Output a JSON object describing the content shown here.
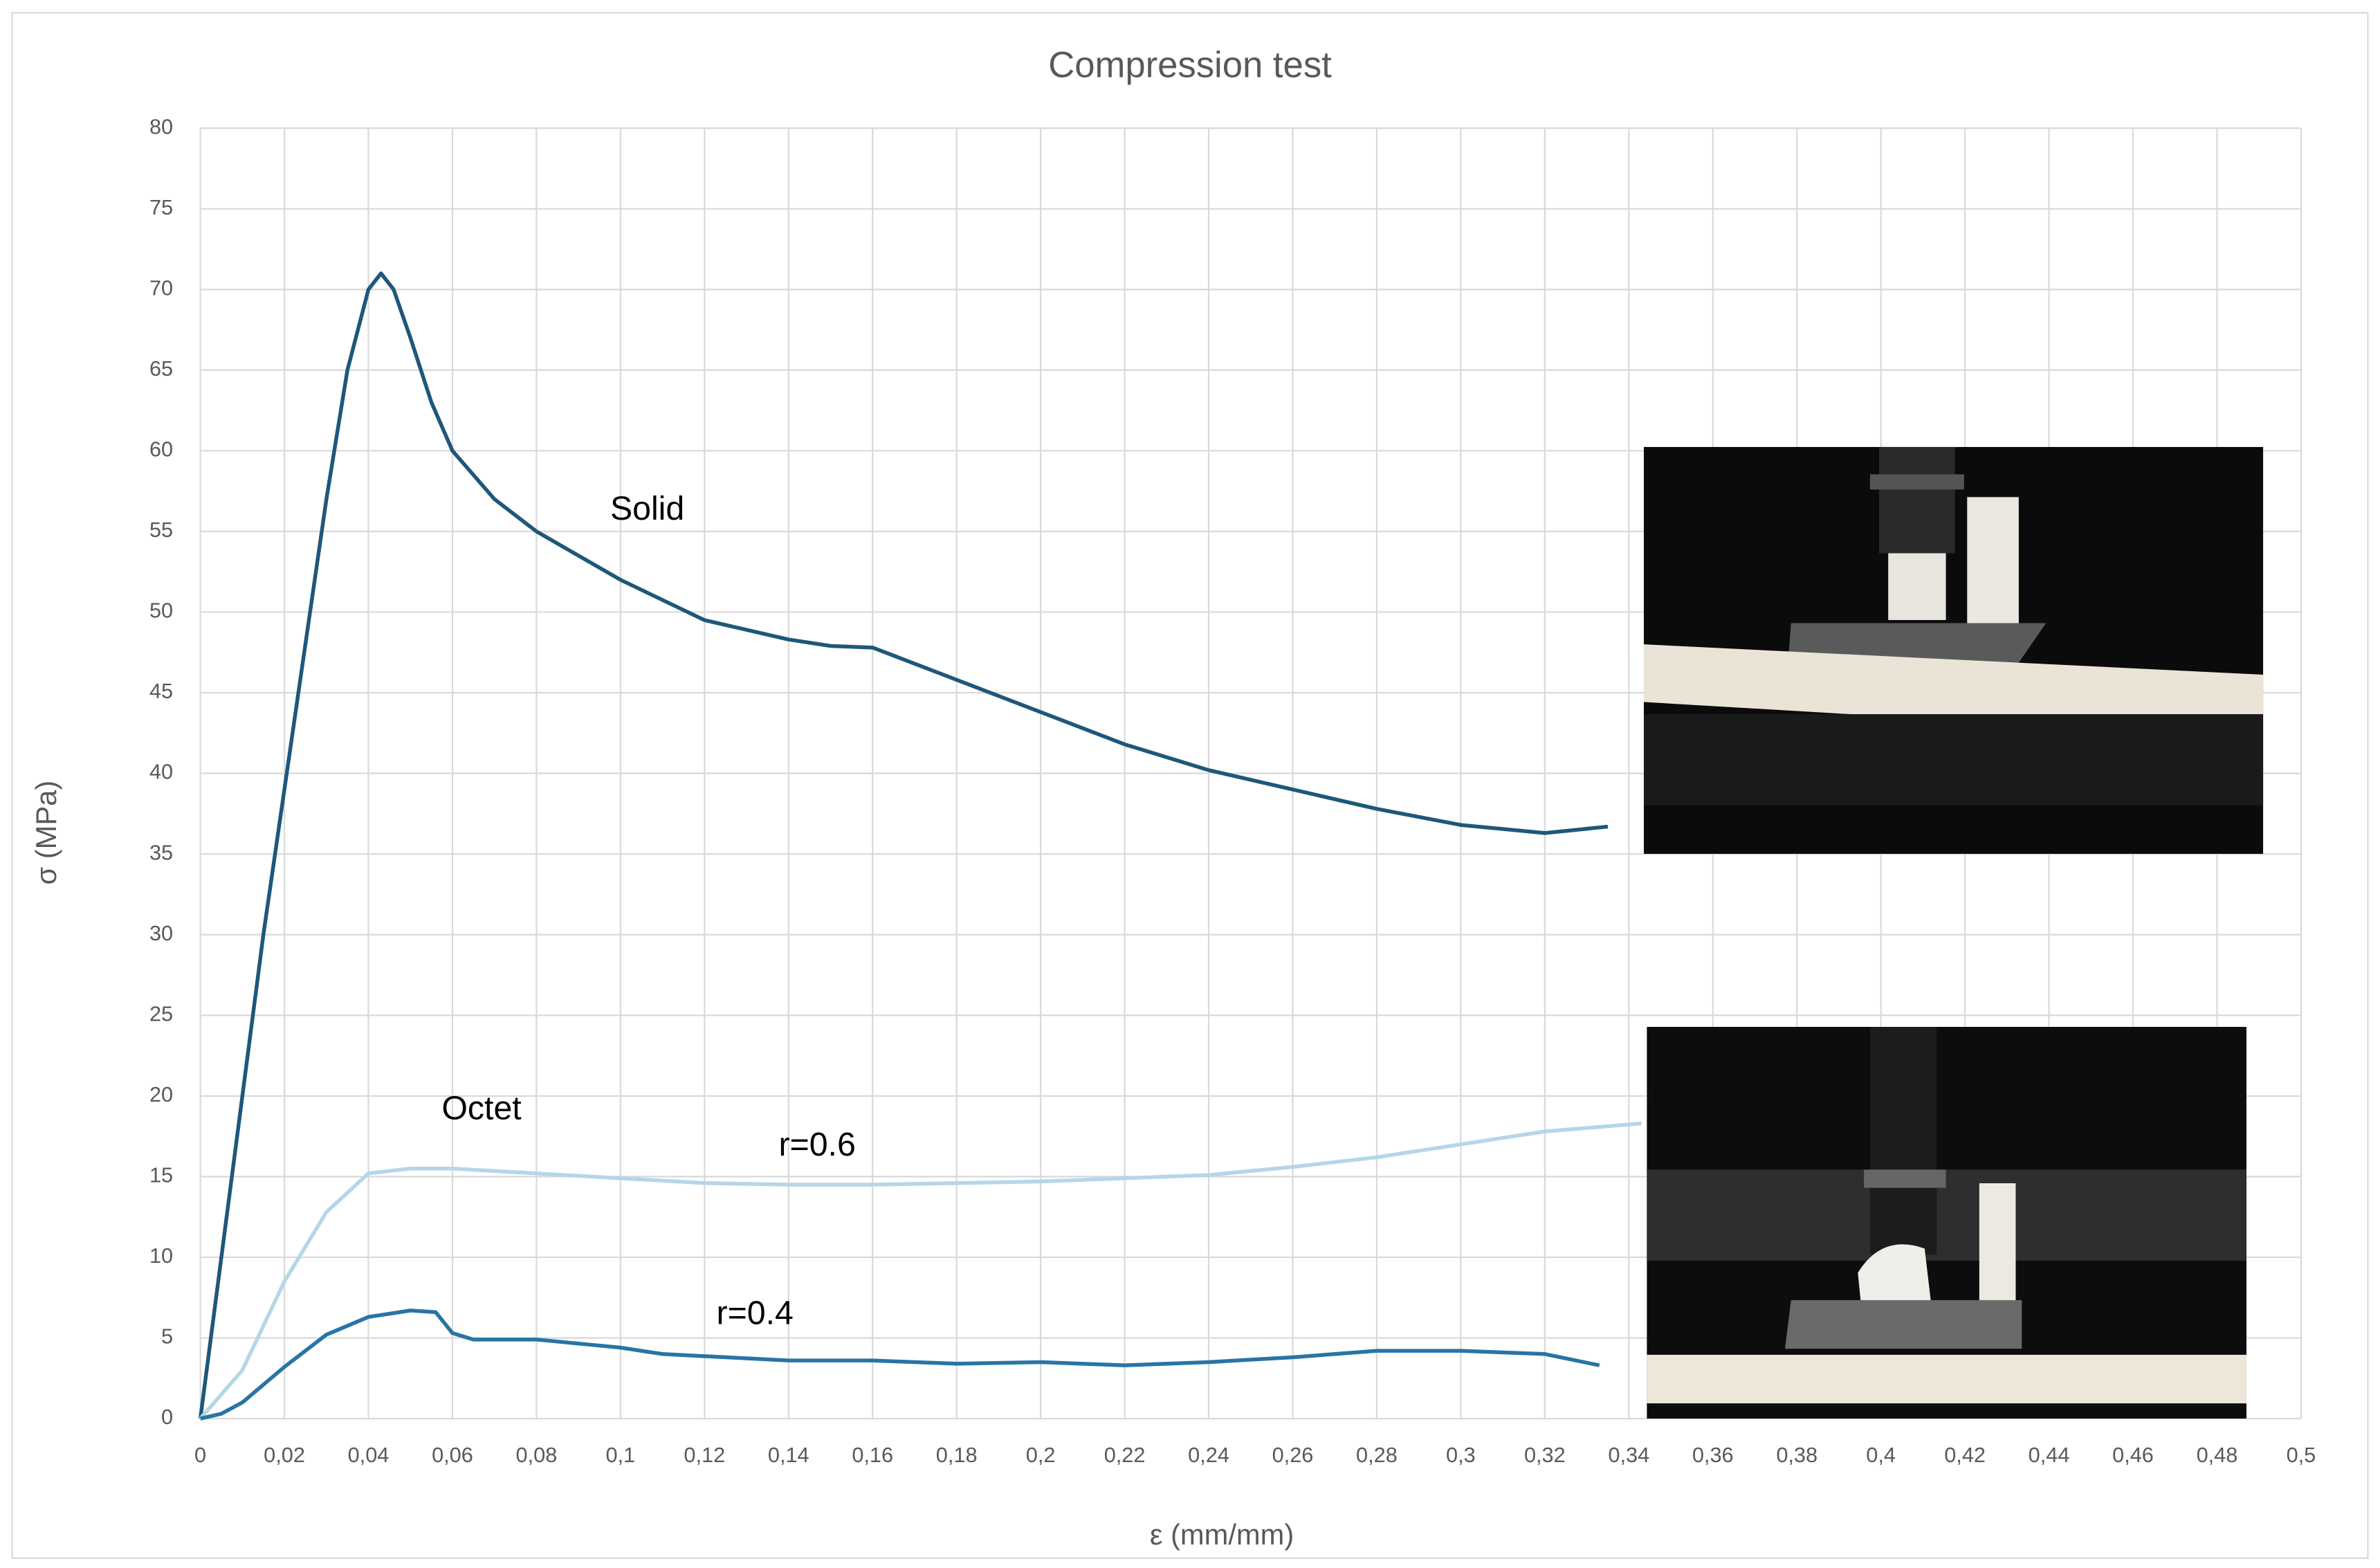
{
  "chart_data": {
    "type": "line",
    "title": "Compression test",
    "x_label": "ε (mm/mm)",
    "y_label": "σ (MPa)",
    "xlim": [
      0,
      0.5
    ],
    "ylim": [
      0,
      80
    ],
    "grid": true,
    "xticks": [
      0,
      {
        "value": 0.02,
        "label": "0,02"
      },
      {
        "value": 0.04,
        "label": "0,04"
      },
      {
        "value": 0.06,
        "label": "0,06"
      },
      {
        "value": 0.08,
        "label": "0,08"
      },
      {
        "value": 0.1,
        "label": "0,1"
      },
      {
        "value": 0.12,
        "label": "0,12"
      },
      {
        "value": 0.14,
        "label": "0,14"
      },
      {
        "value": 0.16,
        "label": "0,16"
      },
      {
        "value": 0.18,
        "label": "0,18"
      },
      {
        "value": 0.2,
        "label": "0,2"
      },
      {
        "value": 0.22,
        "label": "0,22"
      },
      {
        "value": 0.24,
        "label": "0,24"
      },
      {
        "value": 0.26,
        "label": "0,26"
      },
      {
        "value": 0.28,
        "label": "0,28"
      },
      {
        "value": 0.3,
        "label": "0,3"
      },
      {
        "value": 0.32,
        "label": "0,32"
      },
      {
        "value": 0.34,
        "label": "0,34"
      },
      {
        "value": 0.36,
        "label": "0,36"
      },
      {
        "value": 0.38,
        "label": "0,38"
      },
      {
        "value": 0.4,
        "label": "0,4"
      },
      {
        "value": 0.42,
        "label": "0,42"
      },
      {
        "value": 0.44,
        "label": "0,44"
      },
      {
        "value": 0.46,
        "label": "0,46"
      },
      {
        "value": 0.48,
        "label": "0,48"
      },
      {
        "value": 0.5,
        "label": "0,5"
      }
    ],
    "yticks": [
      0,
      5,
      10,
      15,
      20,
      25,
      30,
      35,
      40,
      45,
      50,
      55,
      60,
      65,
      70,
      75,
      80
    ],
    "annotations": [
      "Solid",
      "Octet",
      "r=0.6",
      "r=0.4"
    ],
    "series": [
      {
        "color": "#1f577a",
        "x": [
          0,
          0.005,
          0.01,
          0.015,
          0.02,
          0.025,
          0.03,
          0.035,
          0.04,
          0.043,
          0.046,
          0.05,
          0.055,
          0.06,
          0.07,
          0.08,
          0.09,
          0.1,
          0.12,
          0.14,
          0.15,
          0.16,
          0.18,
          0.2,
          0.22,
          0.24,
          0.26,
          0.28,
          0.3,
          0.32,
          0.335
        ],
        "values": [
          0,
          10,
          20,
          30,
          39,
          48,
          57,
          65,
          70,
          71,
          70,
          67,
          63,
          60,
          57,
          55,
          53.5,
          52,
          49.5,
          48.3,
          47.9,
          47.8,
          45.8,
          43.8,
          41.8,
          40.2,
          39,
          37.8,
          36.8,
          36.3,
          36.7
        ]
      },
      {
        "color": "#b4d7e8",
        "x": [
          0,
          0.01,
          0.02,
          0.03,
          0.04,
          0.05,
          0.06,
          0.08,
          0.1,
          0.12,
          0.14,
          0.16,
          0.18,
          0.2,
          0.22,
          0.24,
          0.26,
          0.28,
          0.3,
          0.32,
          0.343
        ],
        "values": [
          0,
          3,
          8.5,
          12.8,
          15.2,
          15.5,
          15.5,
          15.2,
          14.9,
          14.6,
          14.5,
          14.5,
          14.6,
          14.7,
          14.9,
          15.1,
          15.6,
          16.2,
          17,
          17.8,
          18.3
        ]
      },
      {
        "color": "#2874a6",
        "x": [
          0,
          0.005,
          0.01,
          0.02,
          0.03,
          0.04,
          0.05,
          0.056,
          0.06,
          0.065,
          0.08,
          0.1,
          0.11,
          0.14,
          0.16,
          0.18,
          0.2,
          0.22,
          0.24,
          0.26,
          0.28,
          0.3,
          0.32,
          0.333
        ],
        "values": [
          0,
          0.3,
          1,
          3.2,
          5.2,
          6.3,
          6.7,
          6.6,
          5.3,
          4.9,
          4.9,
          4.4,
          4,
          3.6,
          3.6,
          3.4,
          3.5,
          3.3,
          3.5,
          3.8,
          4.2,
          4.2,
          4,
          3.3
        ]
      }
    ]
  }
}
